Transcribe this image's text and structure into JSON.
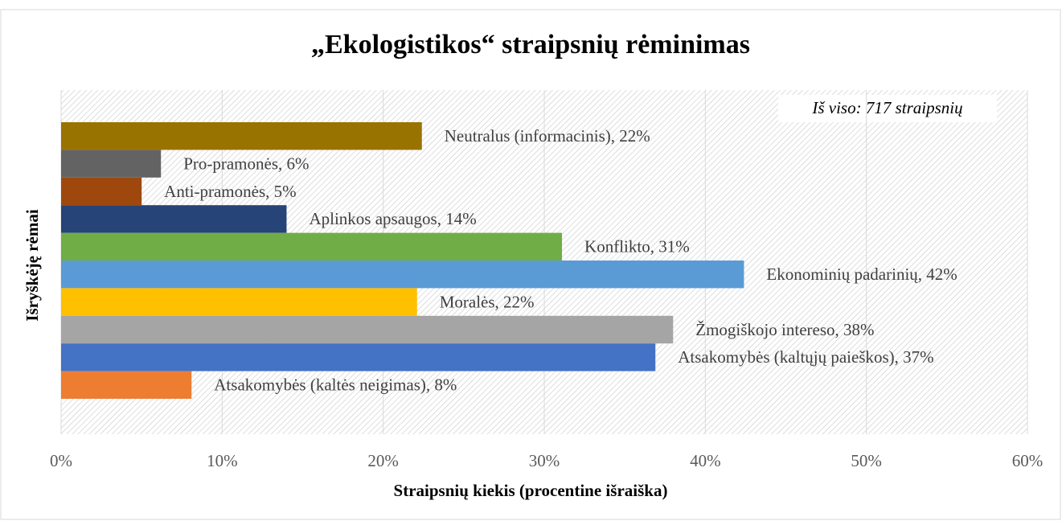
{
  "chart_data": {
    "type": "hbar",
    "title": "„Ekologistikos“ straipsnių rėminimas",
    "annotation": "Iš viso: 717 straipsnių",
    "xlabel": "Straipsnių kiekis (procentine išraiška)",
    "ylabel": "Išryškėję rėmai",
    "values": [
      22.4,
      6.2,
      5,
      14,
      31.1,
      42.4,
      22.1,
      38,
      36.9,
      8.1
    ],
    "value_labels": [
      "Neutralus (informacinis), 22%",
      "Pro-pramonės, 6%",
      "Anti-pramonės, 5%",
      "Aplinkos apsaugos, 14%",
      "Konflikto, 31%",
      "Ekonominių padarinių, 42%",
      "Moralės, 22%",
      "Žmogiškojo intereso, 38%",
      "Atsakomybės (kaltųjų paieškos), 37%",
      "Atsakomybės (kaltės neigimas), 8%"
    ],
    "colors": [
      "#997300",
      "#636363",
      "#9e480e",
      "#264478",
      "#70ad47",
      "#5b9bd5",
      "#ffc000",
      "#a5a5a5",
      "#4472c4",
      "#ed7d31"
    ],
    "order_swap_note_free": true,
    "xlim": [
      0,
      60
    ],
    "xticks": [
      {
        "value": 0,
        "label": "0%"
      },
      {
        "value": 10,
        "label": "10%"
      },
      {
        "value": 20,
        "label": "20%"
      },
      {
        "value": 30,
        "label": "30%"
      },
      {
        "value": 40,
        "label": "40%"
      },
      {
        "value": 50,
        "label": "50%"
      },
      {
        "value": 60,
        "label": "60%"
      }
    ],
    "grid": true
  }
}
